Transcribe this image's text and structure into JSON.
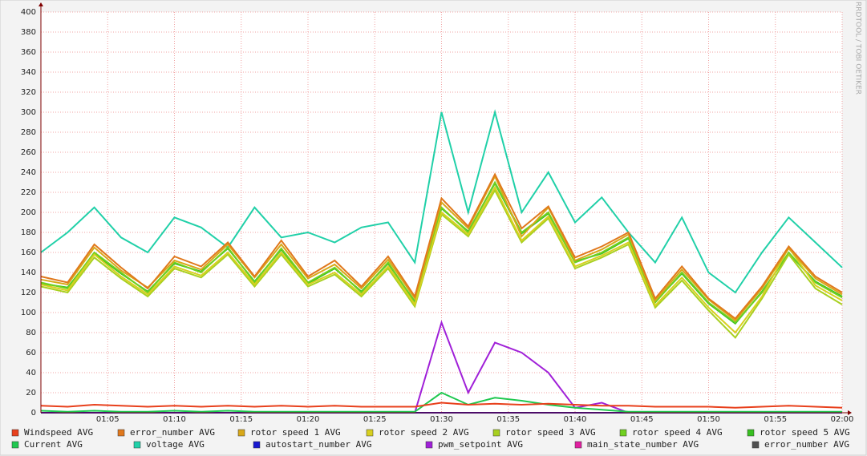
{
  "chart_data": {
    "type": "line",
    "watermark": "RRDTOOL / TOBI OETIKER",
    "x": [
      "01:00",
      "01:02",
      "01:04",
      "01:06",
      "01:08",
      "01:10",
      "01:12",
      "01:14",
      "01:16",
      "01:18",
      "01:20",
      "01:22",
      "01:24",
      "01:26",
      "01:28",
      "01:30",
      "01:32",
      "01:34",
      "01:36",
      "01:38",
      "01:40",
      "01:42",
      "01:44",
      "01:46",
      "01:48",
      "01:50",
      "01:52",
      "01:54",
      "01:56",
      "01:58",
      "02:00"
    ],
    "xlim": [
      "01:00",
      "02:00"
    ],
    "xticks": [
      "01:05",
      "01:10",
      "01:15",
      "01:20",
      "01:25",
      "01:30",
      "01:35",
      "01:40",
      "01:45",
      "01:50",
      "01:55",
      "02:00"
    ],
    "ylim": [
      0,
      400
    ],
    "yticks": [
      0,
      20,
      40,
      60,
      80,
      100,
      120,
      140,
      160,
      180,
      200,
      220,
      240,
      260,
      280,
      300,
      320,
      340,
      360,
      380,
      400
    ],
    "grid": true,
    "series": [
      {
        "name": "Windspeed AVG",
        "color": "#e8401c",
        "values": [
          7,
          6,
          8,
          7,
          6,
          7,
          6,
          7,
          6,
          7,
          6,
          7,
          6,
          6,
          6,
          10,
          8,
          9,
          8,
          9,
          8,
          7,
          7,
          6,
          6,
          6,
          5,
          6,
          7,
          6,
          5
        ]
      },
      {
        "name": "error_number AVG",
        "color": "#e0781c",
        "values": [
          136,
          130,
          168,
          145,
          124,
          156,
          146,
          170,
          136,
          172,
          136,
          152,
          126,
          156,
          116,
          214,
          186,
          238,
          184,
          206,
          155,
          166,
          180,
          114,
          146,
          114,
          94,
          126,
          166,
          136,
          120
        ]
      },
      {
        "name": "rotor speed 1 AVG",
        "color": "#d8a818",
        "values": [
          133,
          128,
          165,
          142,
          125,
          152,
          143,
          168,
          135,
          168,
          134,
          148,
          124,
          153,
          114,
          210,
          184,
          236,
          176,
          205,
          152,
          163,
          178,
          112,
          143,
          113,
          92,
          124,
          164,
          134,
          118
        ]
      },
      {
        "name": "rotor speed 2 AVG",
        "color": "#d8d020",
        "values": [
          128,
          122,
          158,
          136,
          118,
          146,
          137,
          160,
          128,
          160,
          128,
          140,
          118,
          146,
          108,
          200,
          178,
          225,
          172,
          196,
          146,
          157,
          170,
          107,
          135,
          105,
          80,
          116,
          165,
          127,
          112
        ]
      },
      {
        "name": "rotor speed 3 AVG",
        "color": "#a8d020",
        "values": [
          126,
          120,
          155,
          134,
          116,
          144,
          135,
          158,
          126,
          158,
          126,
          138,
          116,
          144,
          106,
          198,
          176,
          222,
          170,
          194,
          144,
          155,
          168,
          105,
          132,
          102,
          75,
          114,
          158,
          124,
          108
        ]
      },
      {
        "name": "rotor speed 4 AVG",
        "color": "#70d020",
        "values": [
          130,
          124,
          160,
          140,
          120,
          150,
          140,
          165,
          130,
          164,
          130,
          145,
          120,
          150,
          110,
          205,
          180,
          230,
          180,
          200,
          150,
          160,
          175,
          110,
          140,
          110,
          90,
          120,
          160,
          130,
          115
        ]
      },
      {
        "name": "rotor speed 5 AVG",
        "color": "#38c020",
        "values": [
          129,
          125,
          159,
          139,
          121,
          149,
          141,
          164,
          131,
          163,
          129,
          144,
          121,
          149,
          111,
          204,
          181,
          229,
          179,
          199,
          151,
          159,
          174,
          111,
          139,
          109,
          89,
          121,
          159,
          131,
          116
        ]
      },
      {
        "name": "Current AVG",
        "color": "#20c850",
        "values": [
          2,
          1,
          2,
          1,
          1,
          2,
          1,
          2,
          1,
          1,
          1,
          1,
          1,
          1,
          1,
          20,
          8,
          15,
          12,
          8,
          5,
          3,
          1,
          1,
          1,
          1,
          1,
          1,
          1,
          1,
          1
        ]
      },
      {
        "name": "voltage AVG",
        "color": "#20d0a8",
        "values": [
          160,
          180,
          205,
          175,
          160,
          195,
          185,
          165,
          205,
          175,
          180,
          170,
          185,
          190,
          150,
          300,
          200,
          300,
          200,
          240,
          190,
          215,
          180,
          150,
          195,
          140,
          120,
          160,
          195,
          170,
          145
        ]
      },
      {
        "name": "autostart_number AVG",
        "color": "#1818d0",
        "values": [
          0,
          0,
          0,
          0,
          0,
          0,
          0,
          0,
          0,
          0,
          0,
          0,
          0,
          0,
          0,
          0,
          0,
          0,
          0,
          0,
          0,
          0,
          0,
          0,
          0,
          0,
          0,
          0,
          0,
          0,
          0
        ]
      },
      {
        "name": "pwm_setpoint AVG",
        "color": "#a020d8",
        "values": [
          0,
          0,
          0,
          0,
          0,
          0,
          0,
          0,
          0,
          0,
          0,
          0,
          0,
          0,
          0,
          90,
          20,
          70,
          60,
          40,
          5,
          10,
          0,
          0,
          0,
          0,
          0,
          0,
          0,
          0,
          0
        ]
      },
      {
        "name": "main_state_number AVG",
        "color": "#e020a0",
        "values": [
          0,
          0,
          0,
          0,
          0,
          0,
          0,
          0,
          0,
          0,
          0,
          0,
          0,
          0,
          0,
          0,
          0,
          0,
          0,
          0,
          0,
          0,
          0,
          0,
          0,
          0,
          0,
          0,
          0,
          0,
          0
        ]
      },
      {
        "name": "error_number AVG",
        "color": "#505050",
        "values": [
          0,
          0,
          0,
          0,
          0,
          0,
          0,
          0,
          0,
          0,
          0,
          0,
          0,
          0,
          0,
          0,
          0,
          0,
          0,
          0,
          0,
          0,
          0,
          0,
          0,
          0,
          0,
          0,
          0,
          0,
          0
        ]
      }
    ]
  }
}
